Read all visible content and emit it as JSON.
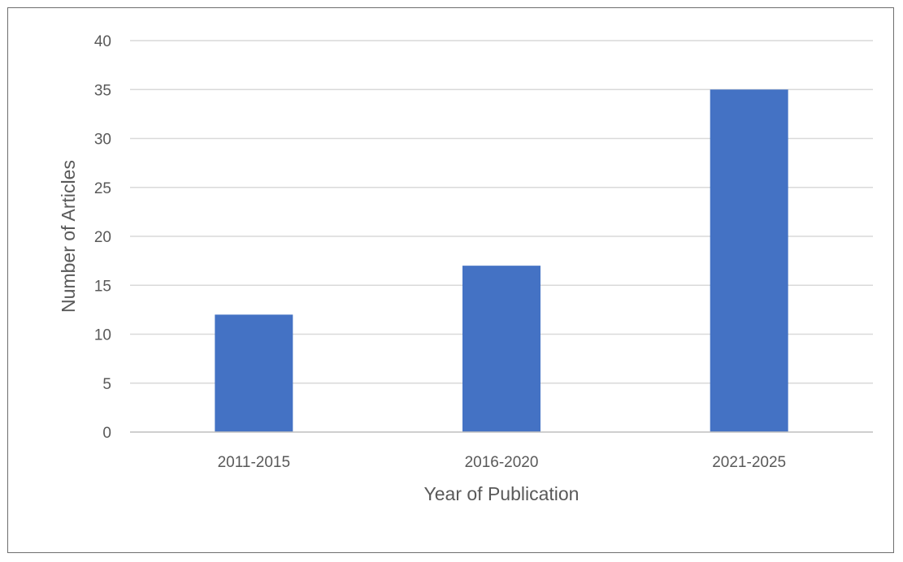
{
  "chart_data": {
    "type": "bar",
    "title": "",
    "xlabel": "Year of Publication",
    "ylabel": "Number of Articles",
    "categories": [
      "2011-2015",
      "2016-2020",
      "2021-2025"
    ],
    "series": [
      {
        "values": [
          12,
          17,
          35
        ]
      }
    ],
    "ylim": [
      0,
      40
    ],
    "yticks": [
      0,
      5,
      10,
      15,
      20,
      25,
      30,
      35,
      40
    ],
    "grid": true,
    "legend": "none",
    "bar_color": "#4472c4"
  }
}
